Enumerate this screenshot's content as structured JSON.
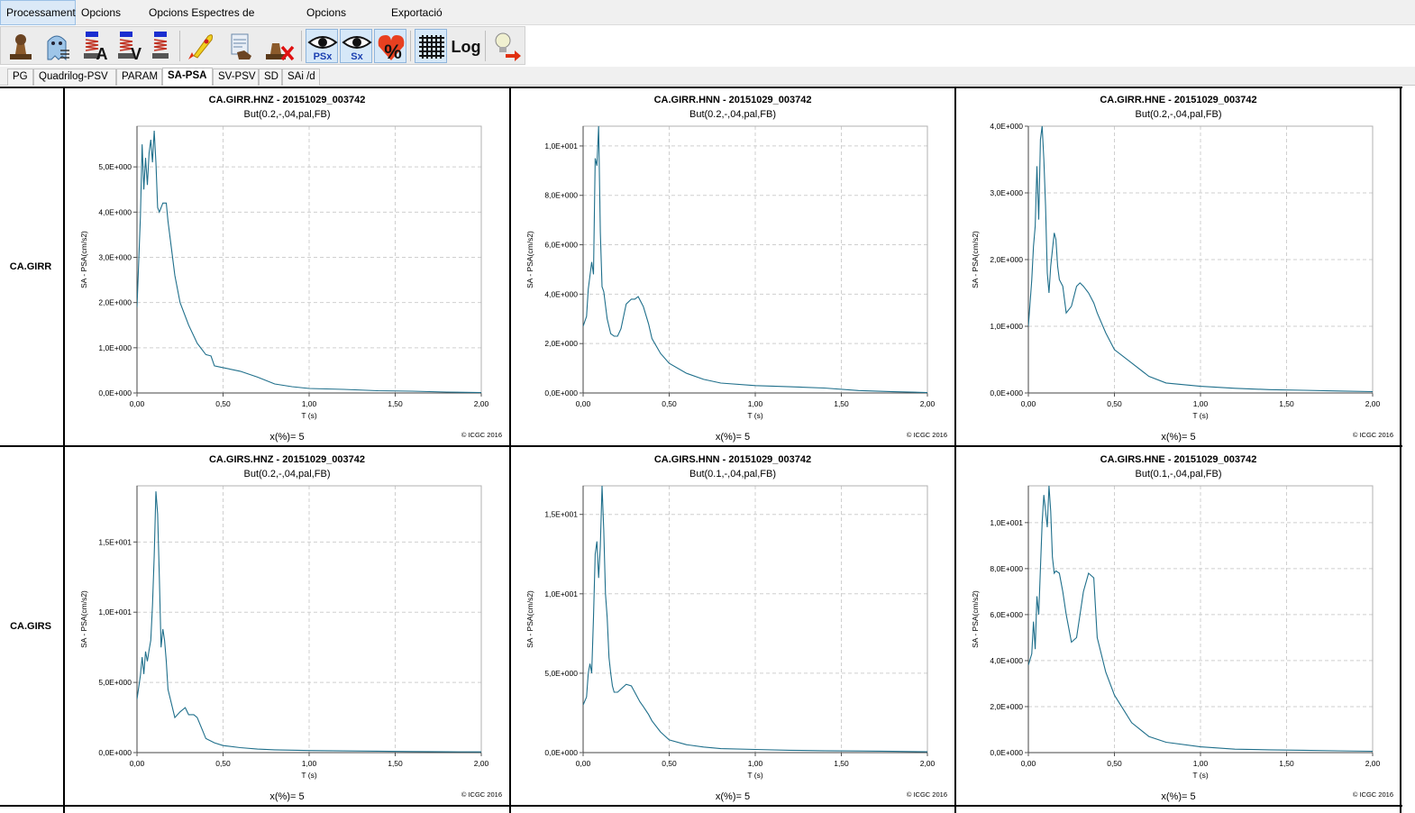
{
  "menu": {
    "items": [
      "Processament",
      "Opcions PG",
      "Opcions Espectres de Resposta",
      "Opcions Gràfics",
      "Exportació"
    ],
    "active_index": 0
  },
  "toolbar": {
    "buttons": [
      {
        "icon": "stamp-icon"
      },
      {
        "icon": "ghost-icon"
      },
      {
        "icon": "spring-a-icon",
        "label": "A"
      },
      {
        "icon": "spring-v-icon",
        "label": "V"
      },
      {
        "icon": "spring-icon"
      },
      {
        "icon": "rocket-icon"
      },
      {
        "icon": "hand-document-icon"
      },
      {
        "icon": "stamp-delete-icon"
      },
      {
        "icon": "eye-psx-icon",
        "label": "PSx",
        "pressed": true
      },
      {
        "icon": "eye-sx-icon",
        "label": "Sx",
        "pressed": true
      },
      {
        "icon": "heart-percent-icon",
        "label": "%",
        "pressed": true
      },
      {
        "icon": "grid-icon",
        "pressed": true
      },
      {
        "icon": "log-icon",
        "label": "Log"
      },
      {
        "icon": "lightbulb-exit-icon"
      }
    ]
  },
  "tabs": {
    "items": [
      "PG",
      "Quadrilog-PSV",
      "PARAM",
      "SA-PSA",
      "SV-PSV",
      "SD",
      "SAi /d"
    ],
    "active_index": 3
  },
  "rows": [
    {
      "station": "CA.GIRR"
    },
    {
      "station": "CA.GIRS"
    }
  ],
  "common": {
    "ylabel": "SA - PSA(cm/s2)",
    "xlabel": "T (s)",
    "damping": "x(%)= 5",
    "copyright": "© ICGC 2016",
    "xticks": [
      "0,00",
      "0,50",
      "1,00",
      "1,50",
      "2,00"
    ]
  },
  "colors": {
    "series": "#1f6f8b",
    "grid": "#cfcfcf",
    "active_tab_bg": "#ffffff",
    "pressed_button_bg": "#d6e8f8"
  },
  "chart_data": [
    {
      "type": "line",
      "title": "CA.GIRR.HNZ - 20151029_003742",
      "subtitle": "But(0.2,-,04,pal,FB)",
      "xlabel": "T (s)",
      "ylabel": "SA - PSA(cm/s2)",
      "xlim": [
        0,
        2
      ],
      "ylim": [
        0,
        5.9
      ],
      "yticks": [
        0,
        1,
        2,
        3,
        4,
        5
      ],
      "ytick_labels": [
        "0,0E+000",
        "1,0E+000",
        "2,0E+000",
        "3,0E+000",
        "4,0E+000",
        "5,0E+000"
      ],
      "x": [
        0.0,
        0.02,
        0.03,
        0.04,
        0.05,
        0.06,
        0.07,
        0.08,
        0.09,
        0.1,
        0.11,
        0.12,
        0.13,
        0.15,
        0.17,
        0.18,
        0.2,
        0.22,
        0.25,
        0.3,
        0.35,
        0.4,
        0.43,
        0.45,
        0.5,
        0.6,
        0.7,
        0.8,
        0.9,
        1.0,
        1.2,
        1.4,
        1.6,
        1.8,
        2.0
      ],
      "y": [
        1.9,
        3.9,
        5.5,
        4.5,
        5.2,
        4.6,
        5.3,
        5.6,
        5.1,
        5.8,
        5.1,
        4.1,
        4.0,
        4.2,
        4.2,
        3.8,
        3.2,
        2.6,
        2.0,
        1.5,
        1.1,
        0.85,
        0.82,
        0.6,
        0.56,
        0.48,
        0.35,
        0.2,
        0.14,
        0.1,
        0.08,
        0.05,
        0.04,
        0.02,
        0.01
      ]
    },
    {
      "type": "line",
      "title": "CA.GIRR.HNN - 20151029_003742",
      "subtitle": "But(0.2,-,04,pal,FB)",
      "xlabel": "T (s)",
      "ylabel": "SA - PSA(cm/s2)",
      "xlim": [
        0,
        2
      ],
      "ylim": [
        0,
        10.8
      ],
      "yticks": [
        0,
        2,
        4,
        6,
        8,
        10
      ],
      "ytick_labels": [
        "0,0E+000",
        "2,0E+000",
        "4,0E+000",
        "6,0E+000",
        "8,0E+000",
        "1,0E+001"
      ],
      "x": [
        0.0,
        0.02,
        0.03,
        0.05,
        0.06,
        0.07,
        0.08,
        0.09,
        0.1,
        0.11,
        0.12,
        0.14,
        0.16,
        0.18,
        0.2,
        0.22,
        0.25,
        0.28,
        0.3,
        0.32,
        0.35,
        0.38,
        0.4,
        0.45,
        0.5,
        0.6,
        0.7,
        0.8,
        1.0,
        1.2,
        1.4,
        1.6,
        1.8,
        2.0
      ],
      "y": [
        2.7,
        3.1,
        4.2,
        5.3,
        4.8,
        9.5,
        9.2,
        10.8,
        6.5,
        4.3,
        4.1,
        3.0,
        2.4,
        2.3,
        2.3,
        2.6,
        3.6,
        3.8,
        3.8,
        3.9,
        3.5,
        2.8,
        2.2,
        1.6,
        1.2,
        0.8,
        0.55,
        0.4,
        0.3,
        0.25,
        0.2,
        0.1,
        0.05,
        0.02
      ]
    },
    {
      "type": "line",
      "title": "CA.GIRR.HNE - 20151029_003742",
      "subtitle": "But(0.2,-,04,pal,FB)",
      "xlabel": "T (s)",
      "ylabel": "SA - PSA(cm/s2)",
      "xlim": [
        0,
        2
      ],
      "ylim": [
        0,
        4.0
      ],
      "yticks": [
        0,
        1,
        2,
        3,
        4
      ],
      "ytick_labels": [
        "0,0E+000",
        "1,0E+000",
        "2,0E+000",
        "3,0E+000",
        "4,0E+000"
      ],
      "x": [
        0.0,
        0.02,
        0.03,
        0.04,
        0.05,
        0.06,
        0.07,
        0.08,
        0.09,
        0.1,
        0.11,
        0.12,
        0.13,
        0.15,
        0.16,
        0.17,
        0.18,
        0.2,
        0.22,
        0.25,
        0.28,
        0.3,
        0.32,
        0.35,
        0.38,
        0.4,
        0.45,
        0.5,
        0.6,
        0.7,
        0.8,
        1.0,
        1.2,
        1.4,
        1.6,
        1.8,
        2.0
      ],
      "y": [
        1.0,
        1.7,
        2.2,
        2.5,
        3.4,
        2.6,
        3.8,
        4.0,
        3.5,
        2.8,
        1.8,
        1.5,
        1.9,
        2.4,
        2.3,
        1.9,
        1.7,
        1.6,
        1.2,
        1.3,
        1.6,
        1.65,
        1.6,
        1.5,
        1.35,
        1.2,
        0.9,
        0.65,
        0.45,
        0.25,
        0.15,
        0.1,
        0.07,
        0.05,
        0.04,
        0.03,
        0.02
      ]
    },
    {
      "type": "line",
      "title": "CA.GIRS.HNZ - 20151029_003742",
      "subtitle": "But(0.2,-,04,pal,FB)",
      "xlabel": "T (s)",
      "ylabel": "SA - PSA(cm/s2)",
      "xlim": [
        0,
        2
      ],
      "ylim": [
        0,
        19.0
      ],
      "yticks": [
        0,
        5,
        10,
        15
      ],
      "ytick_labels": [
        "0,0E+000",
        "5,0E+000",
        "1,0E+001",
        "1,5E+001"
      ],
      "x": [
        0.0,
        0.02,
        0.03,
        0.04,
        0.05,
        0.06,
        0.07,
        0.08,
        0.09,
        0.1,
        0.11,
        0.12,
        0.13,
        0.14,
        0.15,
        0.16,
        0.17,
        0.18,
        0.2,
        0.22,
        0.25,
        0.28,
        0.3,
        0.33,
        0.35,
        0.38,
        0.4,
        0.45,
        0.5,
        0.6,
        0.7,
        0.8,
        1.0,
        1.2,
        1.4,
        1.6,
        1.8,
        2.0
      ],
      "y": [
        3.8,
        5.5,
        6.8,
        5.6,
        7.2,
        6.5,
        7.3,
        8.0,
        10.5,
        14.0,
        18.6,
        17.0,
        12.5,
        7.5,
        8.8,
        8.0,
        6.5,
        4.5,
        3.5,
        2.5,
        2.9,
        3.2,
        2.7,
        2.7,
        2.5,
        1.6,
        1.0,
        0.7,
        0.5,
        0.35,
        0.25,
        0.2,
        0.15,
        0.12,
        0.1,
        0.08,
        0.06,
        0.05
      ]
    },
    {
      "type": "line",
      "title": "CA.GIRS.HNN - 20151029_003742",
      "subtitle": "But(0.1,-,04,pal,FB)",
      "xlabel": "T (s)",
      "ylabel": "SA - PSA(cm/s2)",
      "xlim": [
        0,
        2
      ],
      "ylim": [
        0,
        16.8
      ],
      "yticks": [
        0,
        5,
        10,
        15
      ],
      "ytick_labels": [
        "0,0E+000",
        "5,0E+000",
        "1,0E+001",
        "1,5E+001"
      ],
      "x": [
        0.0,
        0.02,
        0.03,
        0.04,
        0.05,
        0.06,
        0.07,
        0.08,
        0.09,
        0.1,
        0.11,
        0.12,
        0.13,
        0.14,
        0.15,
        0.16,
        0.17,
        0.18,
        0.2,
        0.22,
        0.25,
        0.28,
        0.3,
        0.33,
        0.35,
        0.38,
        0.4,
        0.45,
        0.5,
        0.6,
        0.7,
        0.8,
        1.0,
        1.2,
        1.4,
        1.6,
        1.8,
        2.0
      ],
      "y": [
        3.0,
        3.5,
        5.0,
        5.6,
        5.0,
        8.5,
        12.5,
        13.3,
        11.0,
        13.0,
        16.8,
        14.0,
        10.0,
        8.5,
        6.0,
        5.0,
        4.2,
        3.8,
        3.8,
        4.0,
        4.3,
        4.2,
        3.8,
        3.2,
        2.9,
        2.4,
        2.0,
        1.3,
        0.8,
        0.5,
        0.35,
        0.25,
        0.2,
        0.15,
        0.12,
        0.1,
        0.08,
        0.05
      ]
    },
    {
      "type": "line",
      "title": "CA.GIRS.HNE - 20151029_003742",
      "subtitle": "But(0.1,-,04,pal,FB)",
      "xlabel": "T (s)",
      "ylabel": "SA - PSA(cm/s2)",
      "xlim": [
        0,
        2
      ],
      "ylim": [
        0,
        11.6
      ],
      "yticks": [
        0,
        2,
        4,
        6,
        8,
        10
      ],
      "ytick_labels": [
        "0,0E+000",
        "2,0E+000",
        "4,0E+000",
        "6,0E+000",
        "8,0E+000",
        "1,0E+001"
      ],
      "x": [
        0.0,
        0.02,
        0.03,
        0.04,
        0.05,
        0.06,
        0.07,
        0.08,
        0.09,
        0.1,
        0.11,
        0.12,
        0.13,
        0.14,
        0.15,
        0.16,
        0.18,
        0.2,
        0.22,
        0.25,
        0.28,
        0.3,
        0.32,
        0.35,
        0.38,
        0.4,
        0.45,
        0.5,
        0.6,
        0.7,
        0.8,
        1.0,
        1.2,
        1.4,
        1.6,
        1.8,
        2.0
      ],
      "y": [
        3.8,
        4.3,
        5.7,
        4.5,
        6.8,
        6.0,
        8.0,
        10.0,
        11.2,
        10.5,
        9.8,
        11.6,
        10.5,
        8.5,
        7.8,
        7.9,
        7.8,
        7.0,
        6.0,
        4.8,
        5.0,
        6.0,
        7.0,
        7.8,
        7.6,
        5.0,
        3.5,
        2.5,
        1.3,
        0.7,
        0.45,
        0.25,
        0.15,
        0.12,
        0.1,
        0.08,
        0.06
      ]
    }
  ]
}
